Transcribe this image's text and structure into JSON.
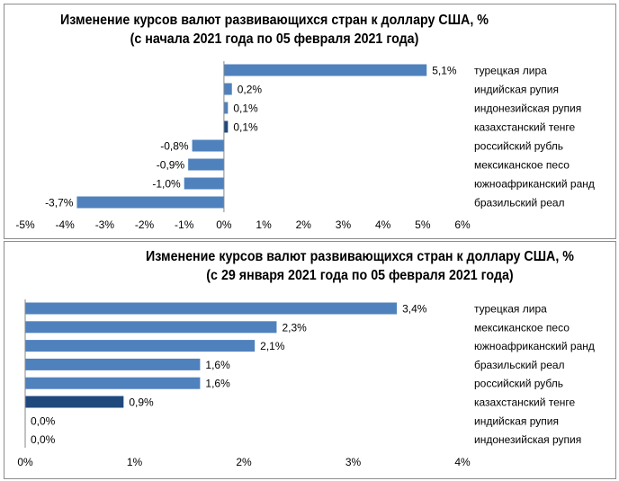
{
  "colors": {
    "bar": "#4F81BD",
    "highlight": "#1F497D",
    "axis": "#868686"
  },
  "chart_data": [
    {
      "type": "bar",
      "orientation": "horizontal",
      "title": "Изменение курсов валют развивающихся стран к доллару США, %",
      "subtitle": "(с начала 2021 года по 05 февраля 2021 года)",
      "categories": [
        "турецкая лира",
        "индийская рупия",
        "индонезийская рупия",
        "казахстанский тенге",
        "российский рубль",
        "мексиканское песо",
        "южноафриканский ранд",
        "бразильский реал"
      ],
      "values": [
        5.1,
        0.2,
        0.1,
        0.1,
        -0.8,
        -0.9,
        -1.0,
        -3.7
      ],
      "data_labels": [
        "5,1%",
        "0,2%",
        "0,1%",
        "0,1%",
        "-0,8%",
        "-0,9%",
        "-1,0%",
        "-3,7%"
      ],
      "highlight": "казахстанский тенге",
      "xlim": [
        -5,
        6
      ],
      "ticks": [
        "-5%",
        "-4%",
        "-3%",
        "-2%",
        "-1%",
        "0%",
        "1%",
        "2%",
        "3%",
        "4%",
        "5%",
        "6%"
      ],
      "tick_values": [
        -5,
        -4,
        -3,
        -2,
        -1,
        0,
        1,
        2,
        3,
        4,
        5,
        6
      ],
      "grid": false
    },
    {
      "type": "bar",
      "orientation": "horizontal",
      "title": "Изменение курсов валют развивающихся стран к доллару США, %",
      "subtitle": "(с 29 января 2021 года по 05 февраля 2021 года)",
      "categories": [
        "турецкая лира",
        "мексиканское песо",
        "южноафриканский ранд",
        "бразильский реал",
        "российский рубль",
        "казахстанский тенге",
        "индийская рупия",
        "индонезийская рупия"
      ],
      "values": [
        3.4,
        2.3,
        2.1,
        1.6,
        1.6,
        0.9,
        0.0,
        0.0
      ],
      "data_labels": [
        "3,4%",
        "2,3%",
        "2,1%",
        "1,6%",
        "1,6%",
        "0,9%",
        "0,0%",
        "0,0%"
      ],
      "highlight": "казахстанский тенге",
      "xlim": [
        0,
        4
      ],
      "ticks": [
        "0%",
        "1%",
        "2%",
        "3%",
        "4%"
      ],
      "tick_values": [
        0,
        1,
        2,
        3,
        4
      ],
      "grid": false
    }
  ]
}
